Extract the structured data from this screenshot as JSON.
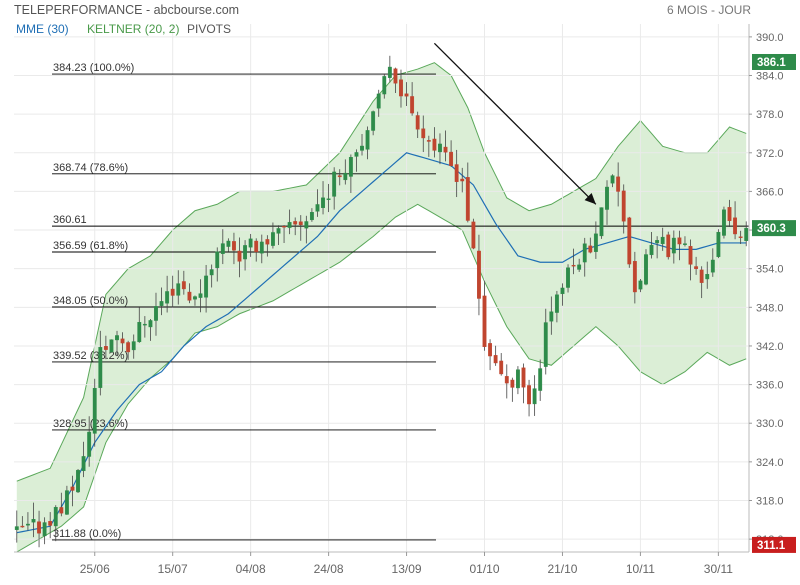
{
  "header": {
    "title": "TELEPERFORMANCE - abcbourse.com",
    "period": "6 MOIS - JOUR"
  },
  "legend": {
    "mme": "MME (30)",
    "keltner": "KELTNER (20, 2)",
    "pivots": "PIVOTS"
  },
  "colors": {
    "up": "#2e8b4a",
    "down": "#c0452f",
    "mme": "#1f6fb5",
    "keltner_fill": "#cfe8c8",
    "keltner_line": "#5aa85a",
    "fib_line": "#000000",
    "last_price_bg": "#2e8b4a",
    "max_badge_bg": "#2e8b4a",
    "min_badge_bg": "#c81e1e",
    "axis_text": "#666666",
    "legend_mme": "#1f6fb5",
    "legend_keltner": "#4a9a4a",
    "legend_pivots": "#555555"
  },
  "chart_data": {
    "type": "candlestick",
    "ylim": [
      310,
      392
    ],
    "y_ticks": [
      "312.0",
      "318.0",
      "324.0",
      "330.0",
      "336.0",
      "342.0",
      "348.0",
      "354.0",
      "360.0",
      "366.0",
      "372.0",
      "378.0",
      "384.0",
      "390.0"
    ],
    "x_tick_labels": [
      "25/06",
      "15/07",
      "04/08",
      "24/08",
      "13/09",
      "01/10",
      "21/10",
      "10/11",
      "30/11"
    ],
    "x_tick_index": [
      14,
      28,
      42,
      56,
      70,
      84,
      98,
      112,
      126
    ],
    "badges": {
      "max": "386.1",
      "last": "360.3",
      "min": "311.1"
    },
    "fibonacci": [
      {
        "value": 384.23,
        "label": "384.23  (100.0%)"
      },
      {
        "value": 368.74,
        "label": "368.74  (78.6%)"
      },
      {
        "value": 360.61,
        "label": "360.61"
      },
      {
        "value": 356.59,
        "label": "356.59  (61.8%)"
      },
      {
        "value": 348.05,
        "label": "348.05  (50.0%)"
      },
      {
        "value": 339.52,
        "label": "339.52  (38.2%)"
      },
      {
        "value": 328.95,
        "label": "328.95  (23.6%)"
      },
      {
        "value": 311.88,
        "label": "311.88  (0.0%)"
      }
    ],
    "trend_arrow": {
      "from": {
        "i": 75,
        "y": 389
      },
      "to": {
        "i": 104,
        "y": 364
      }
    },
    "close_path": [
      [
        0,
        313
      ],
      [
        4,
        314
      ],
      [
        8,
        317
      ],
      [
        12,
        324
      ],
      [
        15,
        341
      ],
      [
        18,
        344
      ],
      [
        20,
        342
      ],
      [
        23,
        346
      ],
      [
        26,
        349
      ],
      [
        29,
        352
      ],
      [
        32,
        349
      ],
      [
        35,
        355
      ],
      [
        38,
        359
      ],
      [
        40,
        356
      ],
      [
        43,
        358
      ],
      [
        46,
        359
      ],
      [
        49,
        360
      ],
      [
        52,
        362
      ],
      [
        55,
        365
      ],
      [
        58,
        369
      ],
      [
        61,
        373
      ],
      [
        64,
        377
      ],
      [
        67,
        386
      ],
      [
        70,
        380
      ],
      [
        72,
        377
      ],
      [
        74,
        374
      ],
      [
        76,
        372
      ],
      [
        78,
        370
      ],
      [
        80,
        368
      ],
      [
        82,
        356
      ],
      [
        84,
        342
      ],
      [
        86,
        340
      ],
      [
        88,
        335
      ],
      [
        90,
        339
      ],
      [
        92,
        333
      ],
      [
        94,
        339
      ],
      [
        95,
        346
      ],
      [
        97,
        350
      ],
      [
        99,
        353
      ],
      [
        101,
        356
      ],
      [
        103,
        358
      ],
      [
        105,
        363
      ],
      [
        107,
        369
      ],
      [
        108,
        367
      ],
      [
        109,
        362
      ],
      [
        111,
        349
      ],
      [
        113,
        356
      ],
      [
        115,
        358
      ],
      [
        117,
        357
      ],
      [
        119,
        359
      ],
      [
        121,
        355
      ],
      [
        123,
        352
      ],
      [
        125,
        356
      ],
      [
        127,
        362
      ],
      [
        129,
        360
      ],
      [
        131,
        360.3
      ]
    ],
    "mme_path": [
      [
        0,
        313
      ],
      [
        6,
        314
      ],
      [
        10,
        320
      ],
      [
        14,
        327
      ],
      [
        18,
        332
      ],
      [
        22,
        336
      ],
      [
        26,
        338
      ],
      [
        30,
        342
      ],
      [
        34,
        345
      ],
      [
        38,
        347
      ],
      [
        42,
        350
      ],
      [
        46,
        353
      ],
      [
        50,
        356
      ],
      [
        54,
        359
      ],
      [
        58,
        363
      ],
      [
        62,
        366
      ],
      [
        66,
        369
      ],
      [
        70,
        372
      ],
      [
        74,
        371
      ],
      [
        78,
        370
      ],
      [
        82,
        367
      ],
      [
        86,
        361
      ],
      [
        90,
        356
      ],
      [
        94,
        355
      ],
      [
        98,
        355
      ],
      [
        102,
        357
      ],
      [
        106,
        358
      ],
      [
        110,
        359
      ],
      [
        114,
        358
      ],
      [
        118,
        357
      ],
      [
        122,
        357
      ],
      [
        126,
        358
      ],
      [
        131,
        358
      ]
    ],
    "keltner_upper": [
      [
        0,
        321
      ],
      [
        6,
        323
      ],
      [
        12,
        334
      ],
      [
        16,
        350
      ],
      [
        20,
        354
      ],
      [
        24,
        356
      ],
      [
        28,
        360
      ],
      [
        32,
        363
      ],
      [
        36,
        364
      ],
      [
        40,
        366
      ],
      [
        46,
        366
      ],
      [
        52,
        367
      ],
      [
        58,
        372
      ],
      [
        64,
        380
      ],
      [
        68,
        384
      ],
      [
        72,
        385
      ],
      [
        75,
        386
      ],
      [
        78,
        384
      ],
      [
        81,
        379
      ],
      [
        84,
        372
      ],
      [
        88,
        365
      ],
      [
        92,
        363
      ],
      [
        96,
        364
      ],
      [
        100,
        366
      ],
      [
        104,
        368
      ],
      [
        108,
        373
      ],
      [
        112,
        377
      ],
      [
        116,
        373
      ],
      [
        120,
        372
      ],
      [
        124,
        372
      ],
      [
        128,
        376
      ],
      [
        131,
        375
      ]
    ],
    "keltner_lower": [
      [
        0,
        310
      ],
      [
        8,
        314
      ],
      [
        12,
        317
      ],
      [
        16,
        327
      ],
      [
        20,
        333
      ],
      [
        24,
        337
      ],
      [
        28,
        340
      ],
      [
        32,
        344
      ],
      [
        36,
        345
      ],
      [
        40,
        347
      ],
      [
        46,
        349
      ],
      [
        52,
        352
      ],
      [
        58,
        355
      ],
      [
        64,
        359
      ],
      [
        68,
        362
      ],
      [
        72,
        364
      ],
      [
        76,
        362
      ],
      [
        80,
        360
      ],
      [
        84,
        352
      ],
      [
        88,
        345
      ],
      [
        92,
        340
      ],
      [
        96,
        339
      ],
      [
        100,
        342
      ],
      [
        104,
        345
      ],
      [
        108,
        342
      ],
      [
        112,
        338
      ],
      [
        116,
        336
      ],
      [
        120,
        338
      ],
      [
        124,
        341
      ],
      [
        128,
        339
      ],
      [
        131,
        340
      ]
    ],
    "n_candles": 132
  }
}
